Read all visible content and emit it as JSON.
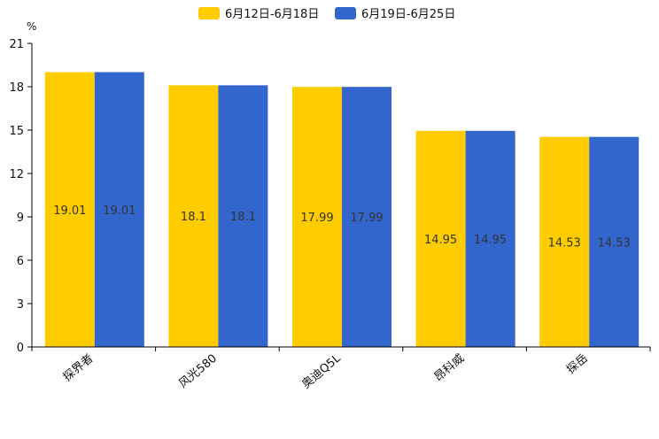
{
  "chart_data": {
    "type": "bar",
    "title": "",
    "ylabel": "%",
    "xlabel": "",
    "ylim": [
      0,
      21
    ],
    "yticks": [
      0,
      3,
      6,
      9,
      12,
      15,
      18,
      21
    ],
    "categories": [
      "探界者",
      "风光580",
      "奥迪Q5L",
      "昂科威",
      "探岳"
    ],
    "series": [
      {
        "name": "6月12日-6月18日",
        "color": "#FFCC00",
        "values": [
          19.01,
          18.1,
          17.99,
          14.95,
          14.53
        ]
      },
      {
        "name": "6月19日-6月25日",
        "color": "#3366CC",
        "values": [
          19.01,
          18.1,
          17.99,
          14.95,
          14.53
        ]
      }
    ],
    "legend_position": "top-center",
    "grid": false
  }
}
